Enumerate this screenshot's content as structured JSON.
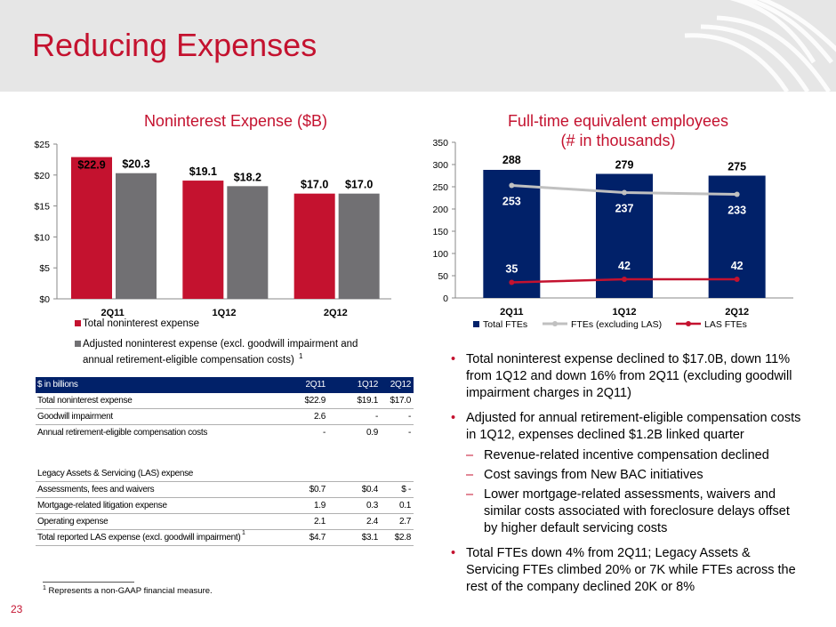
{
  "page": {
    "title": "Reducing Expenses",
    "page_number": "23"
  },
  "colors": {
    "brand_red": "#c4122f",
    "navy": "#012169",
    "gray_bar": "#717073",
    "light_gray_line": "#c0c0c0",
    "header_bg": "#e6e6e6"
  },
  "left_chart": {
    "heading": "Noninterest Expense ($B)",
    "legend": [
      {
        "label": "Total noninterest expense",
        "footnote": ""
      },
      {
        "label": "Adjusted noninterest expense (excl. goodwill impairment and annual retirement-eligible compensation costs)",
        "footnote": "1"
      }
    ]
  },
  "right_chart": {
    "heading_line1": "Full-time equivalent employees",
    "heading_line2": "(# in thousands)",
    "legend": [
      "Total FTEs",
      "FTEs (excluding LAS)",
      "LAS FTEs"
    ]
  },
  "chart_data": [
    {
      "type": "bar",
      "title": "Noninterest Expense ($B)",
      "categories": [
        "2Q11",
        "1Q12",
        "2Q12"
      ],
      "series": [
        {
          "name": "Total noninterest expense",
          "values": [
            22.9,
            19.1,
            17.0
          ],
          "labels": [
            "$22.9",
            "$19.1",
            "$17.0"
          ]
        },
        {
          "name": "Adjusted noninterest expense (excl. goodwill impairment and annual retirement-eligible compensation costs)",
          "values": [
            20.3,
            18.2,
            17.0
          ],
          "labels": [
            "$20.3",
            "$18.2",
            "$17.0"
          ]
        }
      ],
      "ylim": [
        0,
        25
      ],
      "yticks": [
        0,
        5,
        10,
        15,
        20,
        25
      ],
      "ytick_labels": [
        "$0",
        "$5",
        "$10",
        "$15",
        "$20",
        "$25"
      ],
      "xlabel": "",
      "ylabel": "",
      "legend": "bottom"
    },
    {
      "type": "bar",
      "title": "Full-time equivalent employees (# in thousands)",
      "categories": [
        "2Q11",
        "1Q12",
        "2Q12"
      ],
      "series": [
        {
          "name": "Total FTEs",
          "kind": "bar",
          "values": [
            288,
            279,
            275
          ]
        },
        {
          "name": "FTEs (excluding LAS)",
          "kind": "line",
          "values": [
            253,
            237,
            233
          ]
        },
        {
          "name": "LAS FTEs",
          "kind": "line",
          "values": [
            35,
            42,
            42
          ]
        }
      ],
      "ylim": [
        0,
        350
      ],
      "yticks": [
        0,
        50,
        100,
        150,
        200,
        250,
        300,
        350
      ],
      "xlabel": "",
      "ylabel": "",
      "legend": "bottom"
    }
  ],
  "table": {
    "header": [
      "$ in billions",
      "2Q11",
      "1Q12",
      "2Q12"
    ],
    "rows": [
      {
        "label": "Total noninterest expense",
        "v": [
          "$22.9",
          "$19.1",
          "$17.0"
        ],
        "sup": "",
        "line": true
      },
      {
        "label": "Goodwill impairment",
        "v": [
          "2.6",
          "-",
          "-"
        ],
        "sup": "",
        "line": true
      },
      {
        "label": "Annual retirement-eligible compensation costs",
        "v": [
          "-",
          "0.9",
          "-"
        ],
        "sup": "",
        "line": false
      },
      {
        "label": "",
        "v": [
          "",
          "",
          ""
        ],
        "sup": "",
        "line": false
      },
      {
        "label": "Legacy Assets & Servicing (LAS) expense",
        "v": [
          "",
          "",
          ""
        ],
        "sup": "",
        "line": true
      },
      {
        "label": "Assessments, fees and waivers",
        "v": [
          "$0.7",
          "$0.4",
          "$ -"
        ],
        "sup": "",
        "line": true
      },
      {
        "label": "Mortgage-related litigation expense",
        "v": [
          "1.9",
          "0.3",
          "0.1"
        ],
        "sup": "",
        "line": true
      },
      {
        "label": "Operating expense",
        "v": [
          "2.1",
          "2.4",
          "2.7"
        ],
        "sup": "",
        "line": true
      },
      {
        "label": "Total reported LAS expense (excl. goodwill impairment)",
        "v": [
          "$4.7",
          "$3.1",
          "$2.8"
        ],
        "sup": "1",
        "line": true
      }
    ]
  },
  "footnote": {
    "marker": "1",
    "text": "Represents a non-GAAP financial measure."
  },
  "bullets": [
    {
      "text": "Total noninterest expense declined to $17.0B, down 11% from 1Q12 and down 16% from 2Q11 (excluding goodwill impairment charges in 2Q11)",
      "subs": []
    },
    {
      "text": "Adjusted for annual retirement-eligible compensation costs in 1Q12, expenses declined $1.2B linked quarter",
      "subs": [
        "Revenue-related incentive compensation declined",
        "Cost savings from New BAC initiatives",
        "Lower mortgage-related assessments, waivers and similar costs associated with foreclosure delays offset by higher default servicing costs"
      ]
    },
    {
      "text": "Total FTEs down 4% from 2Q11; Legacy Assets & Servicing FTEs climbed 20% or 7K while FTEs across the rest of the company declined 20K or 8%",
      "subs": []
    }
  ],
  "bullet_glyph": "•",
  "dash_glyph": "–"
}
